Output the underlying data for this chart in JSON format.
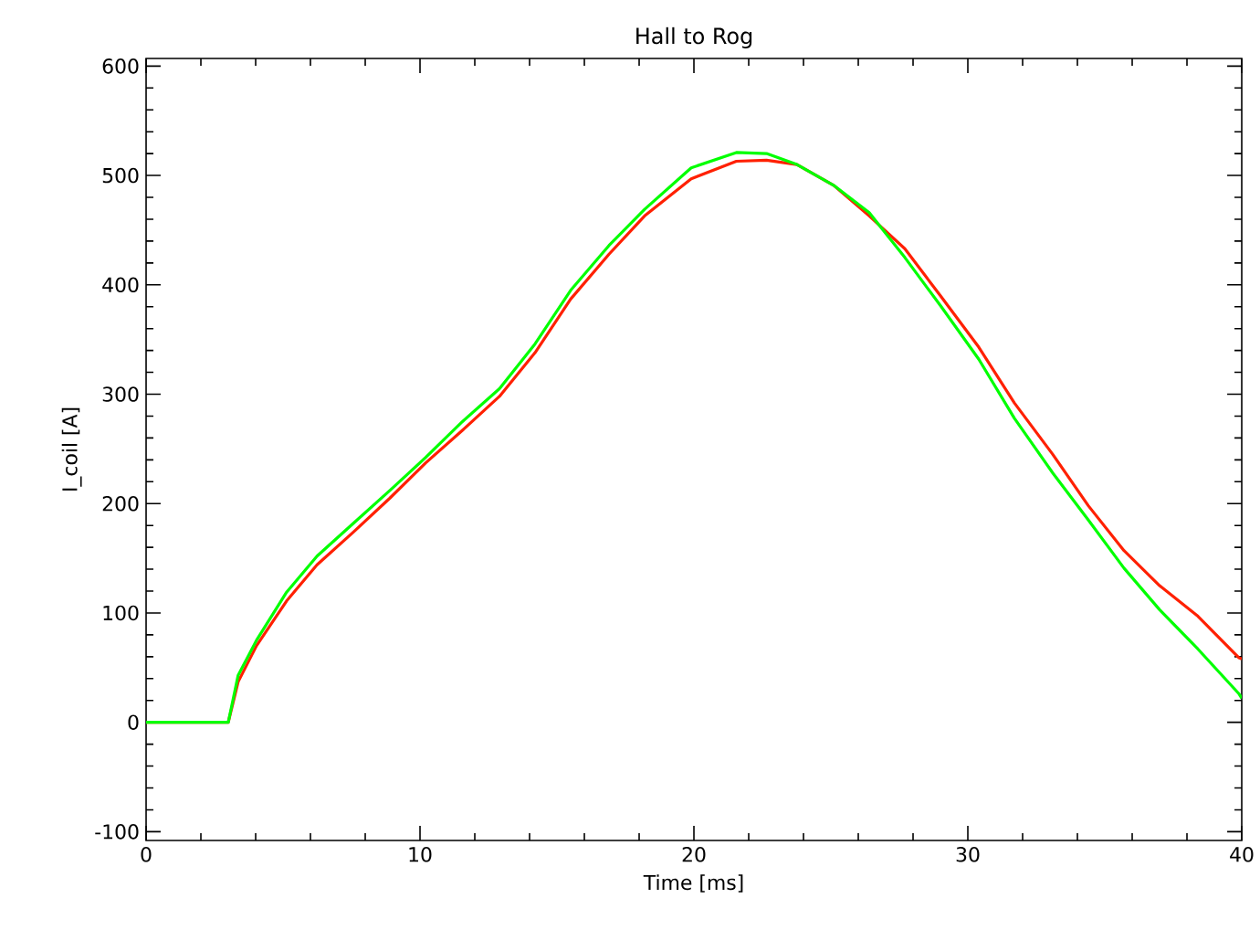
{
  "chart_data": {
    "type": "line",
    "title": "Hall to Rog",
    "xlabel": "Time [ms]",
    "ylabel": "I_coil [A]",
    "xlim": [
      0,
      40
    ],
    "ylim": [
      -108,
      607
    ],
    "xticks": [
      0,
      10,
      20,
      30,
      40
    ],
    "yticks": [
      -100,
      0,
      100,
      200,
      300,
      400,
      500,
      600
    ],
    "marker": "none",
    "line_style": "solid",
    "series": [
      {
        "color": "#ff2000",
        "x": [
          0,
          3,
          3.36,
          4.03,
          5.13,
          6.24,
          7.57,
          8.9,
          10.2,
          11.55,
          12.9,
          14.2,
          15.5,
          16.9,
          18.2,
          19.9,
          21.55,
          22.65,
          23.76,
          25.1,
          26.4,
          27.7,
          29.0,
          30.4,
          31.7,
          33.1,
          34.4,
          35.7,
          37.0,
          38.4,
          39.9,
          40
        ],
        "values": [
          0,
          0,
          37,
          70,
          111,
          144,
          174,
          205,
          237,
          267,
          298,
          338,
          387,
          428,
          463,
          497,
          513,
          514,
          510,
          491,
          463,
          433,
          390,
          343,
          292,
          245,
          198,
          157,
          125,
          97,
          59,
          58
        ]
      },
      {
        "color": "#00ff00",
        "x": [
          0,
          3,
          3.36,
          4.03,
          5.13,
          6.24,
          7.57,
          8.9,
          10.2,
          11.55,
          12.9,
          14.2,
          15.5,
          16.9,
          18.2,
          19.9,
          21.55,
          22.65,
          23.76,
          25.1,
          26.4,
          27.7,
          29.0,
          30.4,
          31.7,
          33.1,
          34.4,
          35.7,
          37.0,
          38.4,
          39.9,
          40
        ],
        "values": [
          0,
          0,
          43,
          75,
          119,
          152,
          182,
          212,
          242,
          275,
          305,
          346,
          395,
          436,
          469,
          507,
          521,
          520,
          510,
          491,
          466,
          425,
          381,
          332,
          278,
          228,
          185,
          141,
          103,
          67,
          26,
          22
        ]
      }
    ]
  }
}
